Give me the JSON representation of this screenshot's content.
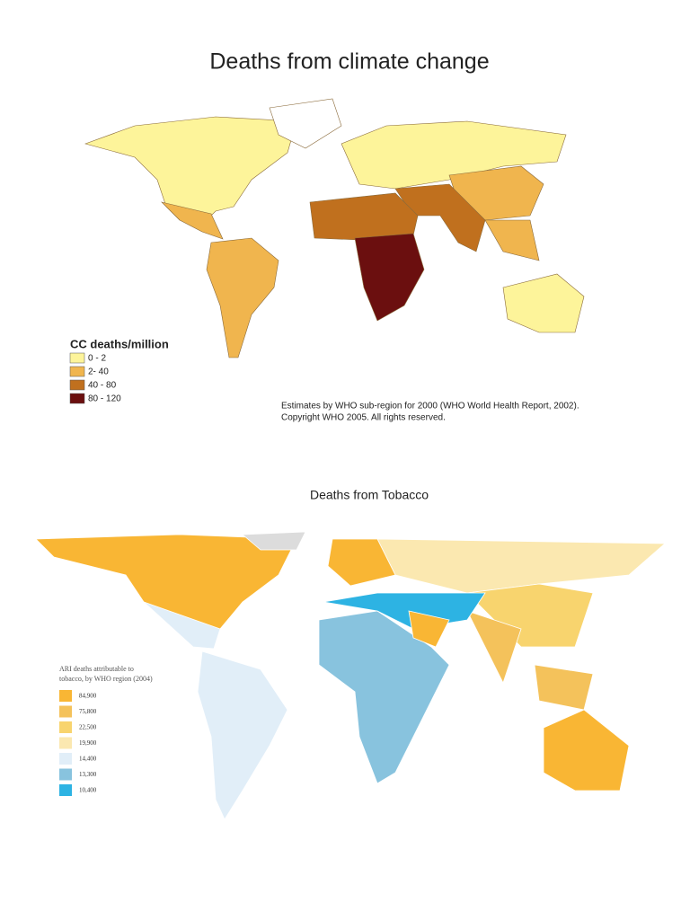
{
  "maps": [
    {
      "title": "Deaths from climate change",
      "legend": {
        "title": "CC deaths/million",
        "items": [
          {
            "label": "0 - 2",
            "color": "#fdf49a"
          },
          {
            "label": "2- 40",
            "color": "#f0b54e"
          },
          {
            "label": "40 - 80",
            "color": "#c0701e"
          },
          {
            "label": "80 - 120",
            "color": "#6b0f0f"
          }
        ]
      },
      "note": [
        "Estimates by WHO sub-region for 2000 (WHO World Health Report, 2002).",
        "Copyright WHO 2005.  All rights reserved."
      ]
    },
    {
      "title": "Deaths from Tobacco",
      "legend": {
        "title": [
          "ARI deaths attributable to",
          "tobacco, by WHO region (2004)"
        ],
        "items": [
          {
            "label": "84,900",
            "color": "#f9b634"
          },
          {
            "label": "75,800",
            "color": "#f4c25b"
          },
          {
            "label": "22,500",
            "color": "#f8d46e"
          },
          {
            "label": "19,900",
            "color": "#fbe8b0"
          },
          {
            "label": "14,400",
            "color": "#e1eef8"
          },
          {
            "label": "13,300",
            "color": "#88c3de"
          },
          {
            "label": "10,400",
            "color": "#2db3e3"
          }
        ]
      }
    }
  ]
}
